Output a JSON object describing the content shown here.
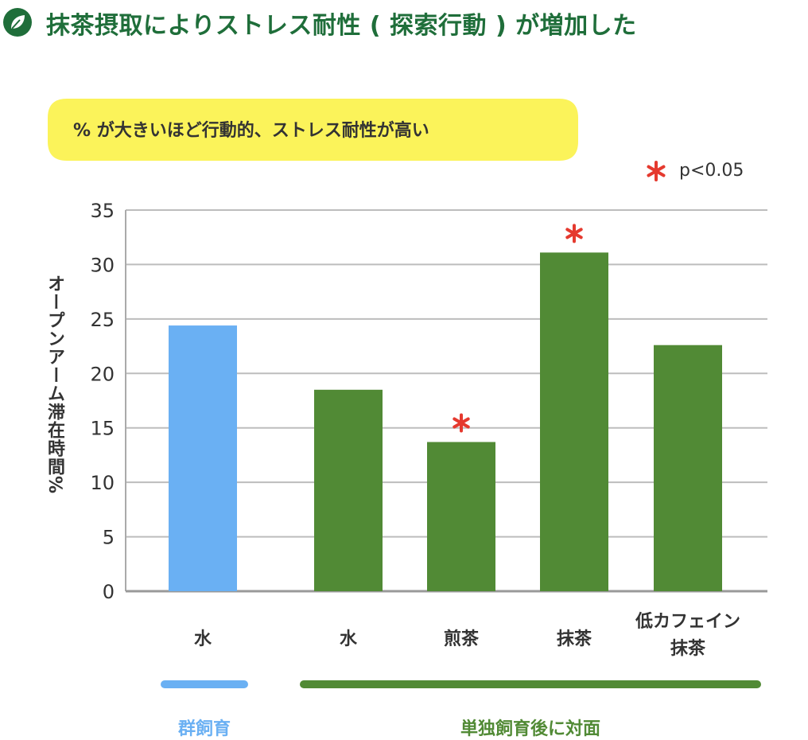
{
  "title": "抹茶摂取によりストレス耐性 ( 探索行動 ) が増加した",
  "header_icon": "leaf-icon",
  "bubble_note": "% が大きいほど行動的、ストレス耐性が高い",
  "significance_legend": {
    "symbol": "＊",
    "text": "p<0.05"
  },
  "colors": {
    "title": "#1f6e3a",
    "group_housing": "#6ab0f3",
    "isolated": "#518a35",
    "bubble": "#fbf35a",
    "star": "#e53a2f",
    "grid": "#bdbdbd"
  },
  "chart_data": {
    "type": "bar",
    "ylabel": "オープンアーム滞在時間%",
    "ylim": [
      0,
      35
    ],
    "yticks": [
      "0",
      "5",
      "10",
      "15",
      "20",
      "25",
      "30",
      "35"
    ],
    "grid": true,
    "categories": [
      "水",
      "水",
      "煎茶",
      "抹茶",
      "低カフェイン\n抹茶"
    ],
    "values": [
      24.4,
      18.5,
      13.7,
      31.1,
      22.6
    ],
    "bar_groups": [
      "群飼育",
      "単独飼育後に対面",
      "単独飼育後に対面",
      "単独飼育後に対面",
      "単独飼育後に対面"
    ],
    "significant": [
      false,
      false,
      true,
      true,
      false
    ]
  },
  "groups": [
    {
      "label": "群飼育"
    },
    {
      "label": "単独飼育後に対面"
    }
  ]
}
